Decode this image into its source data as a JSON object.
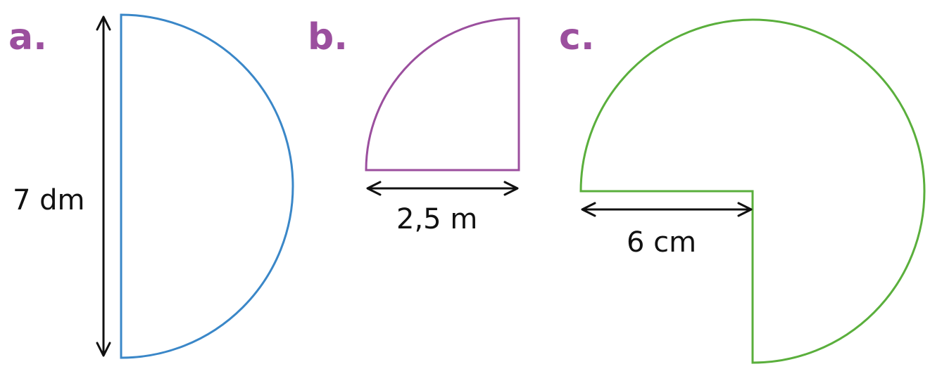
{
  "figures": [
    {
      "label": "a.",
      "measurement": "7 dm",
      "shape_name": "semicircle",
      "stroke_color": "#3a87c8"
    },
    {
      "label": "b.",
      "measurement": "2,5 m",
      "shape_name": "quarter-circle",
      "stroke_color": "#9b4f9e"
    },
    {
      "label": "c.",
      "measurement": "6 cm",
      "shape_name": "three-quarter-circle",
      "stroke_color": "#5aaf3c"
    }
  ],
  "label_color": "#9b4f9e"
}
